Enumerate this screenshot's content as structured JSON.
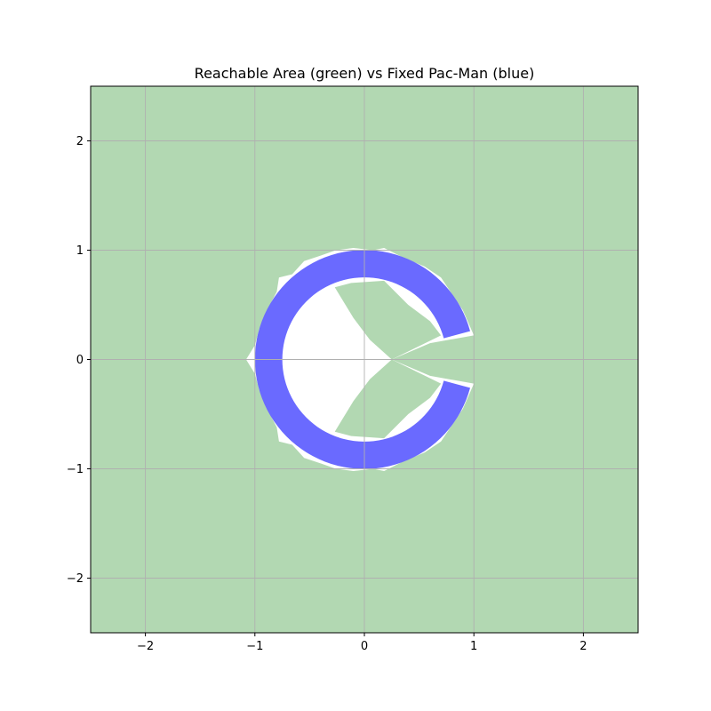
{
  "chart_data": {
    "type": "area",
    "title": "Reachable Area (green) vs Fixed Pac-Man (blue)",
    "xlabel": "",
    "ylabel": "",
    "xlim": [
      -2.5,
      2.5
    ],
    "ylim": [
      -2.5,
      2.5
    ],
    "xticks": [
      -2,
      -1,
      0,
      1,
      2
    ],
    "yticks": [
      -2,
      -1,
      0,
      1,
      2
    ],
    "xtick_labels": [
      "−2",
      "−1",
      "0",
      "1",
      "2"
    ],
    "ytick_labels": [
      "−2",
      "−1",
      "0",
      "1",
      "2"
    ],
    "grid": true,
    "colors": {
      "reachable": "#b2d8b2",
      "pacman": "#6a6aff",
      "cleared": "#ffffff",
      "grid": "#b0b0b0"
    },
    "pacman": {
      "center": [
        0,
        0
      ],
      "outer_radius": 1.0,
      "inner_radius": 0.75,
      "mouth_half_angle_deg": 15
    },
    "unreachable_boundary": [
      [
        -1.0,
        0.13
      ],
      [
        -0.96,
        0.28
      ],
      [
        -0.9,
        0.43
      ],
      [
        -0.8,
        0.62
      ],
      [
        -0.78,
        0.75
      ],
      [
        -0.66,
        0.78
      ],
      [
        -0.55,
        0.9
      ],
      [
        -0.4,
        0.95
      ],
      [
        -0.26,
        1.0
      ],
      [
        -0.1,
        1.02
      ],
      [
        0.08,
        1.0
      ],
      [
        0.18,
        1.02
      ],
      [
        0.36,
        0.93
      ],
      [
        0.55,
        0.85
      ],
      [
        0.7,
        0.75
      ],
      [
        0.8,
        0.6
      ],
      [
        0.9,
        0.45
      ],
      [
        1.0,
        0.22
      ],
      [
        0.6,
        0.15
      ],
      [
        0.25,
        0.0
      ],
      [
        0.6,
        -0.15
      ],
      [
        1.0,
        -0.22
      ],
      [
        0.9,
        -0.45
      ],
      [
        0.8,
        -0.6
      ],
      [
        0.7,
        -0.75
      ],
      [
        0.55,
        -0.85
      ],
      [
        0.36,
        -0.93
      ],
      [
        0.18,
        -1.02
      ],
      [
        0.08,
        -1.0
      ],
      [
        -0.1,
        -1.02
      ],
      [
        -0.26,
        -1.0
      ],
      [
        -0.4,
        -0.95
      ],
      [
        -0.55,
        -0.9
      ],
      [
        -0.66,
        -0.78
      ],
      [
        -0.78,
        -0.75
      ],
      [
        -0.8,
        -0.62
      ],
      [
        -0.9,
        -0.43
      ],
      [
        -0.96,
        -0.28
      ],
      [
        -1.0,
        -0.13
      ],
      [
        -1.08,
        0.0
      ]
    ],
    "interior_reachable_regions": [
      {
        "name": "upper",
        "points": [
          [
            -0.27,
            0.66
          ],
          [
            -0.12,
            0.7
          ],
          [
            0.18,
            0.72
          ],
          [
            0.4,
            0.5
          ],
          [
            0.6,
            0.35
          ],
          [
            0.7,
            0.22
          ],
          [
            0.25,
            0.0
          ],
          [
            0.05,
            0.18
          ],
          [
            -0.1,
            0.38
          ]
        ]
      },
      {
        "name": "lower",
        "points": [
          [
            -0.27,
            -0.66
          ],
          [
            -0.12,
            -0.7
          ],
          [
            0.18,
            -0.72
          ],
          [
            0.4,
            -0.5
          ],
          [
            0.6,
            -0.35
          ],
          [
            0.7,
            -0.22
          ],
          [
            0.25,
            0.0
          ],
          [
            0.05,
            -0.18
          ],
          [
            -0.1,
            -0.38
          ]
        ]
      }
    ]
  }
}
